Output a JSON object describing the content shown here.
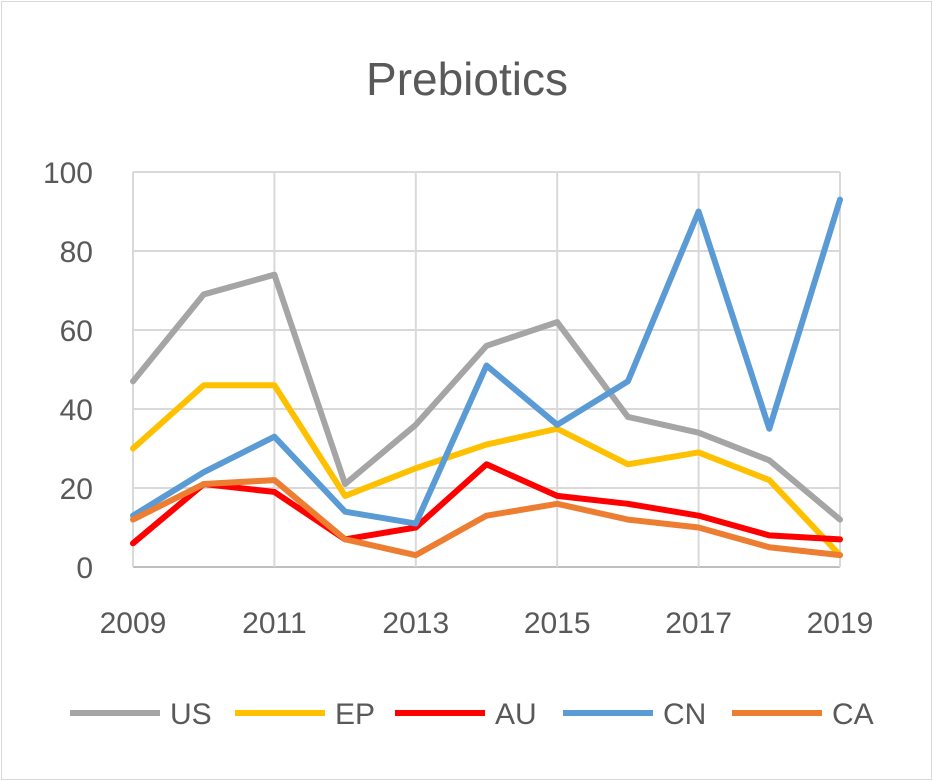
{
  "chart_data": {
    "type": "line",
    "title": "Prebiotics",
    "xlabel": "",
    "ylabel": "",
    "x": [
      2009,
      2010,
      2011,
      2012,
      2013,
      2014,
      2015,
      2016,
      2017,
      2018,
      2019
    ],
    "x_tick_labels": [
      "2009",
      "2011",
      "2013",
      "2015",
      "2017",
      "2019"
    ],
    "y_tick_labels": [
      "0",
      "20",
      "40",
      "60",
      "80",
      "100"
    ],
    "ylim": [
      0,
      100
    ],
    "grid": true,
    "legend_position": "bottom",
    "series": [
      {
        "name": "US",
        "color": "#a5a5a5",
        "values": [
          47,
          69,
          74,
          21,
          36,
          56,
          62,
          38,
          34,
          27,
          12
        ]
      },
      {
        "name": "EP",
        "color": "#ffc000",
        "values": [
          30,
          46,
          46,
          18,
          25,
          31,
          35,
          26,
          29,
          22,
          3
        ]
      },
      {
        "name": "AU",
        "color": "#ff0000",
        "values": [
          6,
          21,
          19,
          7,
          10,
          26,
          18,
          16,
          13,
          8,
          7
        ]
      },
      {
        "name": "CN",
        "color": "#5b9bd5",
        "values": [
          13,
          24,
          33,
          14,
          11,
          51,
          36,
          47,
          90,
          35,
          93
        ]
      },
      {
        "name": "CA",
        "color": "#ed7d31",
        "values": [
          12,
          21,
          22,
          7,
          3,
          13,
          16,
          12,
          10,
          5,
          3
        ]
      }
    ]
  }
}
